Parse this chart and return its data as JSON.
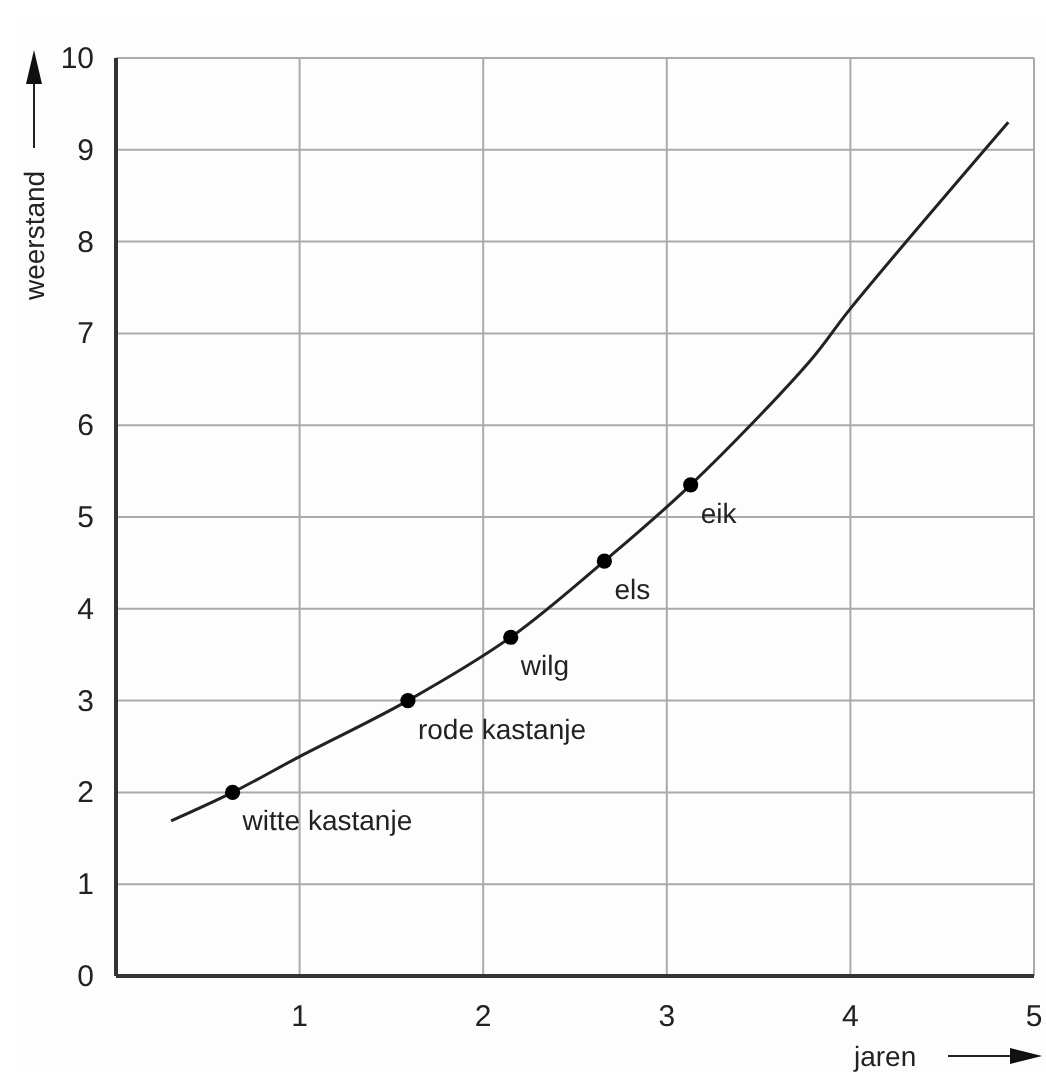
{
  "chart_data": {
    "type": "line",
    "xlabel": "jaren",
    "ylabel": "weerstand",
    "xlim": [
      0,
      5
    ],
    "ylim": [
      0,
      10
    ],
    "xticks": [
      1,
      2,
      3,
      4,
      5
    ],
    "yticks": [
      0,
      1,
      2,
      3,
      4,
      5,
      6,
      7,
      8,
      9,
      10
    ],
    "grid": true,
    "series": [
      {
        "color": "#222222",
        "marker": "none",
        "line_style": "solid",
        "x": [
          0.3,
          0.635,
          1.0,
          1.59,
          2.15,
          2.66,
          3.13,
          3.78,
          4.0,
          4.86
        ],
        "values": [
          1.69,
          2.0,
          2.39,
          3.0,
          3.69,
          4.52,
          5.35,
          6.7,
          7.27,
          9.3
        ]
      },
      {
        "type": "scatter",
        "color": "#000000",
        "marker": "circle",
        "x": [
          0.635,
          1.59,
          2.15,
          2.66,
          3.13
        ],
        "values": [
          2.0,
          3.0,
          3.69,
          4.52,
          5.35
        ]
      }
    ],
    "annotations": [
      {
        "text": "witte kastanje",
        "x": 0.635,
        "y": 2.0
      },
      {
        "text": "rode kastanje",
        "x": 1.59,
        "y": 3.0
      },
      {
        "text": "wilg",
        "x": 2.15,
        "y": 3.69
      },
      {
        "text": "els",
        "x": 2.66,
        "y": 4.52
      },
      {
        "text": "eik",
        "x": 3.13,
        "y": 5.35
      }
    ]
  }
}
